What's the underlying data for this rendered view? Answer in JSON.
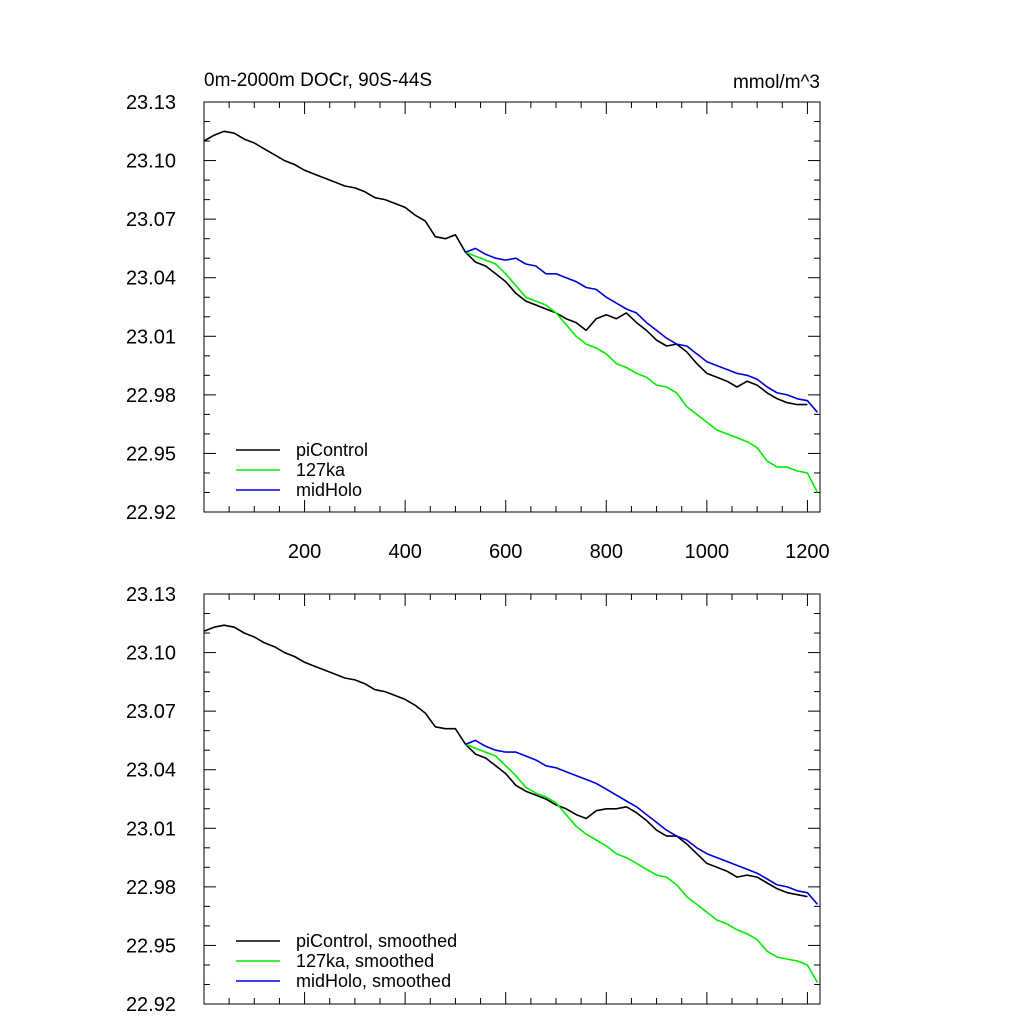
{
  "chart_data": [
    {
      "type": "line",
      "title": "0m-2000m DOCr, 90S-44S",
      "units": "mmol/m^3",
      "xlim": [
        0,
        1225
      ],
      "ylim": [
        22.92,
        23.13
      ],
      "xticks": [
        200,
        400,
        600,
        800,
        1000,
        1200
      ],
      "yticks": [
        23.13,
        23.1,
        23.07,
        23.04,
        23.01,
        22.98,
        22.95,
        22.92
      ],
      "ytick_labels": [
        "23.13",
        "23.10",
        "23.07",
        "23.04",
        "23.01",
        "22.98",
        "22.95",
        "22.92"
      ],
      "grid": false,
      "legend_position": "bottom-left",
      "series": [
        {
          "name": "piControl",
          "color": "#000000",
          "x": [
            0,
            20,
            40,
            60,
            80,
            100,
            120,
            140,
            160,
            180,
            200,
            220,
            240,
            260,
            280,
            300,
            320,
            340,
            360,
            380,
            400,
            420,
            440,
            460,
            480,
            500,
            520,
            540,
            560,
            580,
            600,
            620,
            640,
            660,
            680,
            700,
            720,
            740,
            760,
            780,
            800,
            820,
            840,
            860,
            880,
            900,
            920,
            940,
            960,
            980,
            1000,
            1020,
            1040,
            1060,
            1080,
            1100,
            1120,
            1140,
            1160,
            1180,
            1200
          ],
          "y": [
            23.11,
            23.113,
            23.115,
            23.114,
            23.111,
            23.109,
            23.106,
            23.103,
            23.1,
            23.098,
            23.095,
            23.093,
            23.091,
            23.089,
            23.087,
            23.086,
            23.084,
            23.081,
            23.08,
            23.078,
            23.076,
            23.072,
            23.069,
            23.061,
            23.06,
            23.062,
            23.053,
            23.048,
            23.046,
            23.042,
            23.038,
            23.032,
            23.028,
            23.026,
            23.024,
            23.022,
            23.019,
            23.017,
            23.013,
            23.019,
            23.021,
            23.019,
            23.022,
            23.017,
            23.013,
            23.008,
            23.005,
            23.006,
            23.002,
            22.996,
            22.991,
            22.989,
            22.987,
            22.984,
            22.987,
            22.985,
            22.981,
            22.978,
            22.976,
            22.975,
            22.975
          ]
        },
        {
          "name": "127ka",
          "color": "#00ee00",
          "x": [
            520,
            540,
            560,
            580,
            600,
            620,
            640,
            660,
            680,
            700,
            720,
            740,
            760,
            780,
            800,
            820,
            840,
            860,
            880,
            900,
            920,
            940,
            960,
            980,
            1000,
            1020,
            1040,
            1060,
            1080,
            1100,
            1120,
            1140,
            1160,
            1180,
            1200,
            1220
          ],
          "y": [
            23.053,
            23.051,
            23.049,
            23.047,
            23.042,
            23.036,
            23.03,
            23.028,
            23.026,
            23.022,
            23.016,
            23.01,
            23.006,
            23.004,
            23.001,
            22.996,
            22.994,
            22.991,
            22.989,
            22.985,
            22.984,
            22.981,
            22.974,
            22.97,
            22.966,
            22.962,
            22.96,
            22.958,
            22.956,
            22.953,
            22.946,
            22.943,
            22.943,
            22.941,
            22.94,
            22.93
          ]
        },
        {
          "name": "midHolo",
          "color": "#0000dd",
          "x": [
            520,
            540,
            560,
            580,
            600,
            620,
            640,
            660,
            680,
            700,
            720,
            740,
            760,
            780,
            800,
            820,
            840,
            860,
            880,
            900,
            920,
            940,
            960,
            980,
            1000,
            1020,
            1040,
            1060,
            1080,
            1100,
            1120,
            1140,
            1160,
            1180,
            1200,
            1220
          ],
          "y": [
            23.053,
            23.055,
            23.052,
            23.05,
            23.049,
            23.05,
            23.047,
            23.046,
            23.042,
            23.042,
            23.04,
            23.038,
            23.035,
            23.034,
            23.03,
            23.027,
            23.024,
            23.022,
            23.017,
            23.013,
            23.009,
            23.006,
            23.005,
            23.001,
            22.997,
            22.995,
            22.993,
            22.991,
            22.99,
            22.988,
            22.984,
            22.981,
            22.98,
            22.978,
            22.977,
            22.971
          ]
        }
      ]
    },
    {
      "type": "line",
      "xlim": [
        0,
        1225
      ],
      "ylim": [
        22.92,
        23.13
      ],
      "xticks": [
        200,
        400,
        600,
        800,
        1000,
        1200
      ],
      "yticks": [
        23.13,
        23.1,
        23.07,
        23.04,
        23.01,
        22.98,
        22.95,
        22.92
      ],
      "ytick_labels": [
        "23.13",
        "23.10",
        "23.07",
        "23.04",
        "23.01",
        "22.98",
        "22.95",
        "22.92"
      ],
      "grid": false,
      "legend_position": "bottom-left",
      "series": [
        {
          "name": "piControl, smoothed",
          "color": "#000000",
          "x": [
            0,
            20,
            40,
            60,
            80,
            100,
            120,
            140,
            160,
            180,
            200,
            220,
            240,
            260,
            280,
            300,
            320,
            340,
            360,
            380,
            400,
            420,
            440,
            460,
            480,
            500,
            520,
            540,
            560,
            580,
            600,
            620,
            640,
            660,
            680,
            700,
            720,
            740,
            760,
            780,
            800,
            820,
            840,
            860,
            880,
            900,
            920,
            940,
            960,
            980,
            1000,
            1020,
            1040,
            1060,
            1080,
            1100,
            1120,
            1140,
            1160,
            1180,
            1200
          ],
          "y": [
            23.111,
            23.113,
            23.114,
            23.113,
            23.11,
            23.108,
            23.105,
            23.103,
            23.1,
            23.098,
            23.095,
            23.093,
            23.091,
            23.089,
            23.087,
            23.086,
            23.084,
            23.081,
            23.08,
            23.078,
            23.076,
            23.073,
            23.069,
            23.062,
            23.061,
            23.061,
            23.053,
            23.048,
            23.046,
            23.042,
            23.038,
            23.032,
            23.029,
            23.027,
            23.025,
            23.022,
            23.02,
            23.017,
            23.015,
            23.019,
            23.02,
            23.02,
            23.021,
            23.018,
            23.014,
            23.009,
            23.006,
            23.006,
            23.002,
            22.997,
            22.992,
            22.99,
            22.988,
            22.985,
            22.986,
            22.985,
            22.982,
            22.979,
            22.977,
            22.976,
            22.975
          ]
        },
        {
          "name": "127ka, smoothed",
          "color": "#00ee00",
          "x": [
            520,
            540,
            560,
            580,
            600,
            620,
            640,
            660,
            680,
            700,
            720,
            740,
            760,
            780,
            800,
            820,
            840,
            860,
            880,
            900,
            920,
            940,
            960,
            980,
            1000,
            1020,
            1040,
            1060,
            1080,
            1100,
            1120,
            1140,
            1160,
            1180,
            1200,
            1220
          ],
          "y": [
            23.053,
            23.051,
            23.049,
            23.047,
            23.042,
            23.037,
            23.031,
            23.028,
            23.026,
            23.023,
            23.017,
            23.011,
            23.007,
            23.004,
            23.001,
            22.997,
            22.995,
            22.992,
            22.989,
            22.986,
            22.985,
            22.981,
            22.975,
            22.971,
            22.967,
            22.963,
            22.961,
            22.958,
            22.956,
            22.953,
            22.947,
            22.944,
            22.943,
            22.942,
            22.94,
            22.931
          ]
        },
        {
          "name": "midHolo, smoothed",
          "color": "#0000dd",
          "x": [
            520,
            540,
            560,
            580,
            600,
            620,
            640,
            660,
            680,
            700,
            720,
            740,
            760,
            780,
            800,
            820,
            840,
            860,
            880,
            900,
            920,
            940,
            960,
            980,
            1000,
            1020,
            1040,
            1060,
            1080,
            1100,
            1120,
            1140,
            1160,
            1180,
            1200,
            1220
          ],
          "y": [
            23.053,
            23.055,
            23.052,
            23.05,
            23.049,
            23.049,
            23.047,
            23.045,
            23.042,
            23.041,
            23.039,
            23.037,
            23.035,
            23.033,
            23.03,
            23.027,
            23.024,
            23.021,
            23.017,
            23.013,
            23.009,
            23.006,
            23.004,
            23.0,
            22.997,
            22.995,
            22.993,
            22.991,
            22.989,
            22.987,
            22.984,
            22.981,
            22.98,
            22.978,
            22.977,
            22.971
          ]
        }
      ]
    }
  ]
}
